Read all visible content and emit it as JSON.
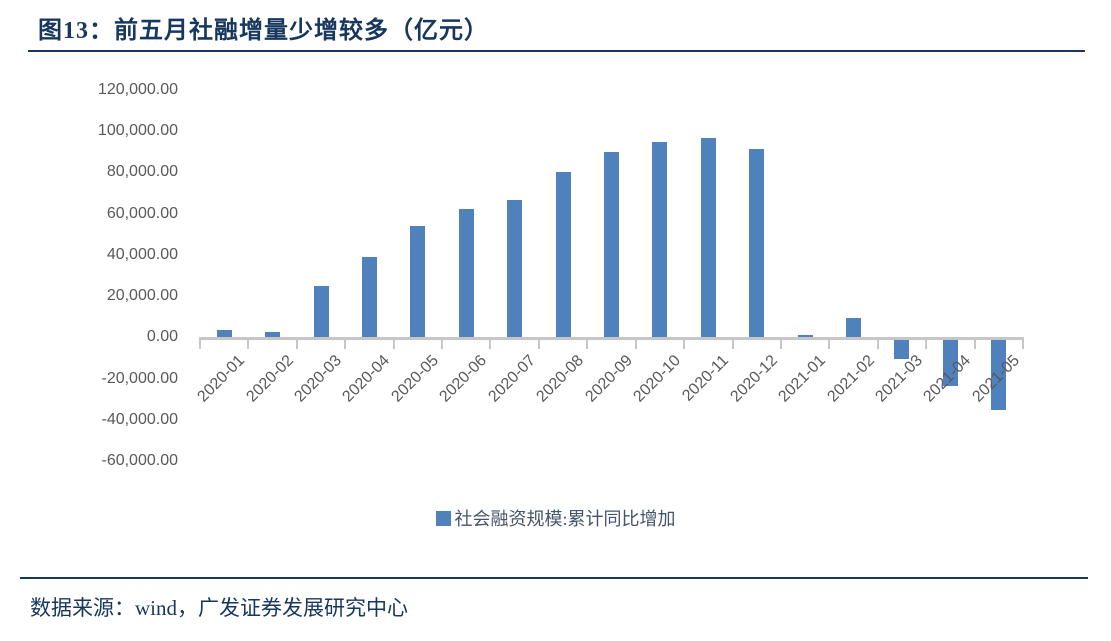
{
  "figure": {
    "title": "图13：前五月社融增量少增较多（亿元）",
    "source": "数据来源：wind，广发证券发展研究中心"
  },
  "colors": {
    "bar": "#4F81BD",
    "heading": "#17375E",
    "axis_line": "#C6C6C6",
    "tick_text": "#595959",
    "legend_text": "#44546A"
  },
  "chart_data": {
    "type": "bar",
    "title": "前五月社融增量少增较多（亿元）",
    "unit": "亿元",
    "categories": [
      "2020-01",
      "2020-02",
      "2020-03",
      "2020-04",
      "2020-05",
      "2020-06",
      "2020-07",
      "2020-08",
      "2020-09",
      "2020-10",
      "2020-11",
      "2020-12",
      "2021-01",
      "2021-02",
      "2021-03",
      "2021-04",
      "2021-05"
    ],
    "series": [
      {
        "name": "社会融资规模:累计同比增加",
        "color": "#4F81BD",
        "values": [
          3500,
          2700,
          25000,
          39000,
          54000,
          62500,
          66500,
          80000,
          90000,
          95000,
          96500,
          91500,
          1200,
          9600,
          -9000,
          -22000,
          -34000
        ]
      }
    ],
    "ylim": [
      -60000,
      120000
    ],
    "ytick_step": 20000,
    "yticks": [
      {
        "value": 120000,
        "label": "120,000.00"
      },
      {
        "value": 100000,
        "label": "100,000.00"
      },
      {
        "value": 80000,
        "label": "80,000.00"
      },
      {
        "value": 60000,
        "label": "60,000.00"
      },
      {
        "value": 40000,
        "label": "40,000.00"
      },
      {
        "value": 20000,
        "label": "20,000.00"
      },
      {
        "value": 0,
        "label": "0.00"
      },
      {
        "value": -20000,
        "label": "-20,000.00"
      },
      {
        "value": -40000,
        "label": "-40,000.00"
      },
      {
        "value": -60000,
        "label": "-60,000.00"
      }
    ],
    "grid": false,
    "legend_position": "bottom",
    "xlabel": "",
    "ylabel": ""
  }
}
